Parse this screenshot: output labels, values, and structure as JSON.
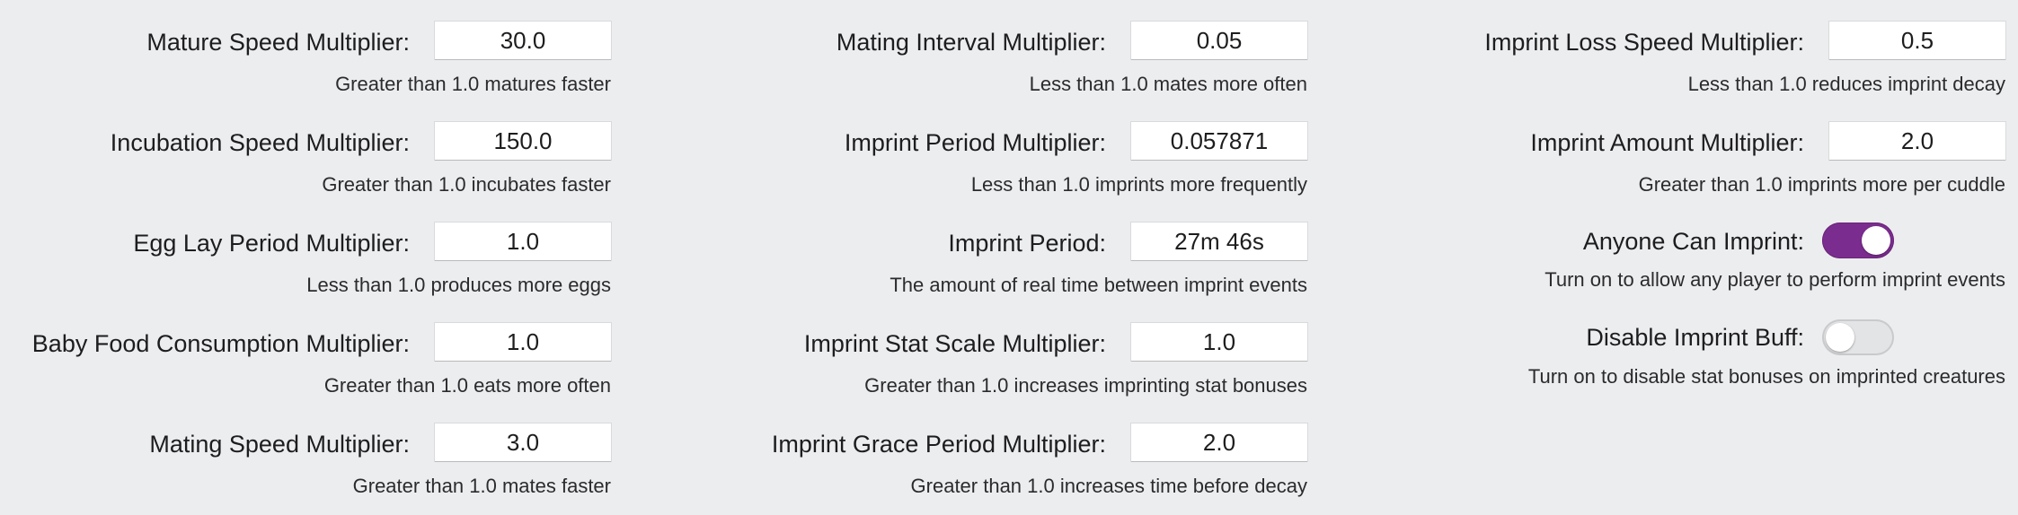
{
  "columns": [
    {
      "settings": [
        {
          "label": "Mature Speed Multiplier:",
          "value": "30.0",
          "hint": "Greater than 1.0 matures faster"
        },
        {
          "label": "Incubation Speed Multiplier:",
          "value": "150.0",
          "hint": "Greater than 1.0 incubates faster"
        },
        {
          "label": "Egg Lay Period Multiplier:",
          "value": "1.0",
          "hint": "Less than 1.0 produces more eggs"
        },
        {
          "label": "Baby Food Consumption Multiplier:",
          "value": "1.0",
          "hint": "Greater than 1.0 eats more often"
        },
        {
          "label": "Mating Speed Multiplier:",
          "value": "3.0",
          "hint": "Greater than 1.0 mates faster"
        }
      ]
    },
    {
      "settings": [
        {
          "label": "Mating Interval Multiplier:",
          "value": "0.05",
          "hint": "Less than 1.0 mates more often"
        },
        {
          "label": "Imprint Period Multiplier:",
          "value": "0.057871",
          "hint": "Less than 1.0 imprints more frequently"
        },
        {
          "label": "Imprint Period:",
          "value": "27m 46s",
          "hint": "The amount of real time between imprint events"
        },
        {
          "label": "Imprint Stat Scale Multiplier:",
          "value": "1.0",
          "hint": "Greater than 1.0 increases imprinting stat bonuses"
        },
        {
          "label": "Imprint Grace Period Multiplier:",
          "value": "2.0",
          "hint": "Greater than 1.0 increases time before decay"
        }
      ]
    },
    {
      "settings": [
        {
          "label": "Imprint Loss Speed Multiplier:",
          "value": "0.5",
          "hint": "Less than 1.0 reduces imprint decay"
        },
        {
          "label": "Imprint Amount Multiplier:",
          "value": "2.0",
          "hint": "Greater than 1.0 imprints more per cuddle"
        }
      ],
      "toggles": [
        {
          "label": "Anyone Can Imprint:",
          "on": true,
          "hint": "Turn on to allow any player to perform imprint events"
        },
        {
          "label": "Disable Imprint Buff:",
          "on": false,
          "hint": "Turn on to disable stat bonuses on imprinted creatures"
        }
      ]
    }
  ],
  "colors": {
    "background": "#ecedee",
    "toggle_on": "#7b2d8f",
    "toggle_off": "#e3e4e6"
  }
}
